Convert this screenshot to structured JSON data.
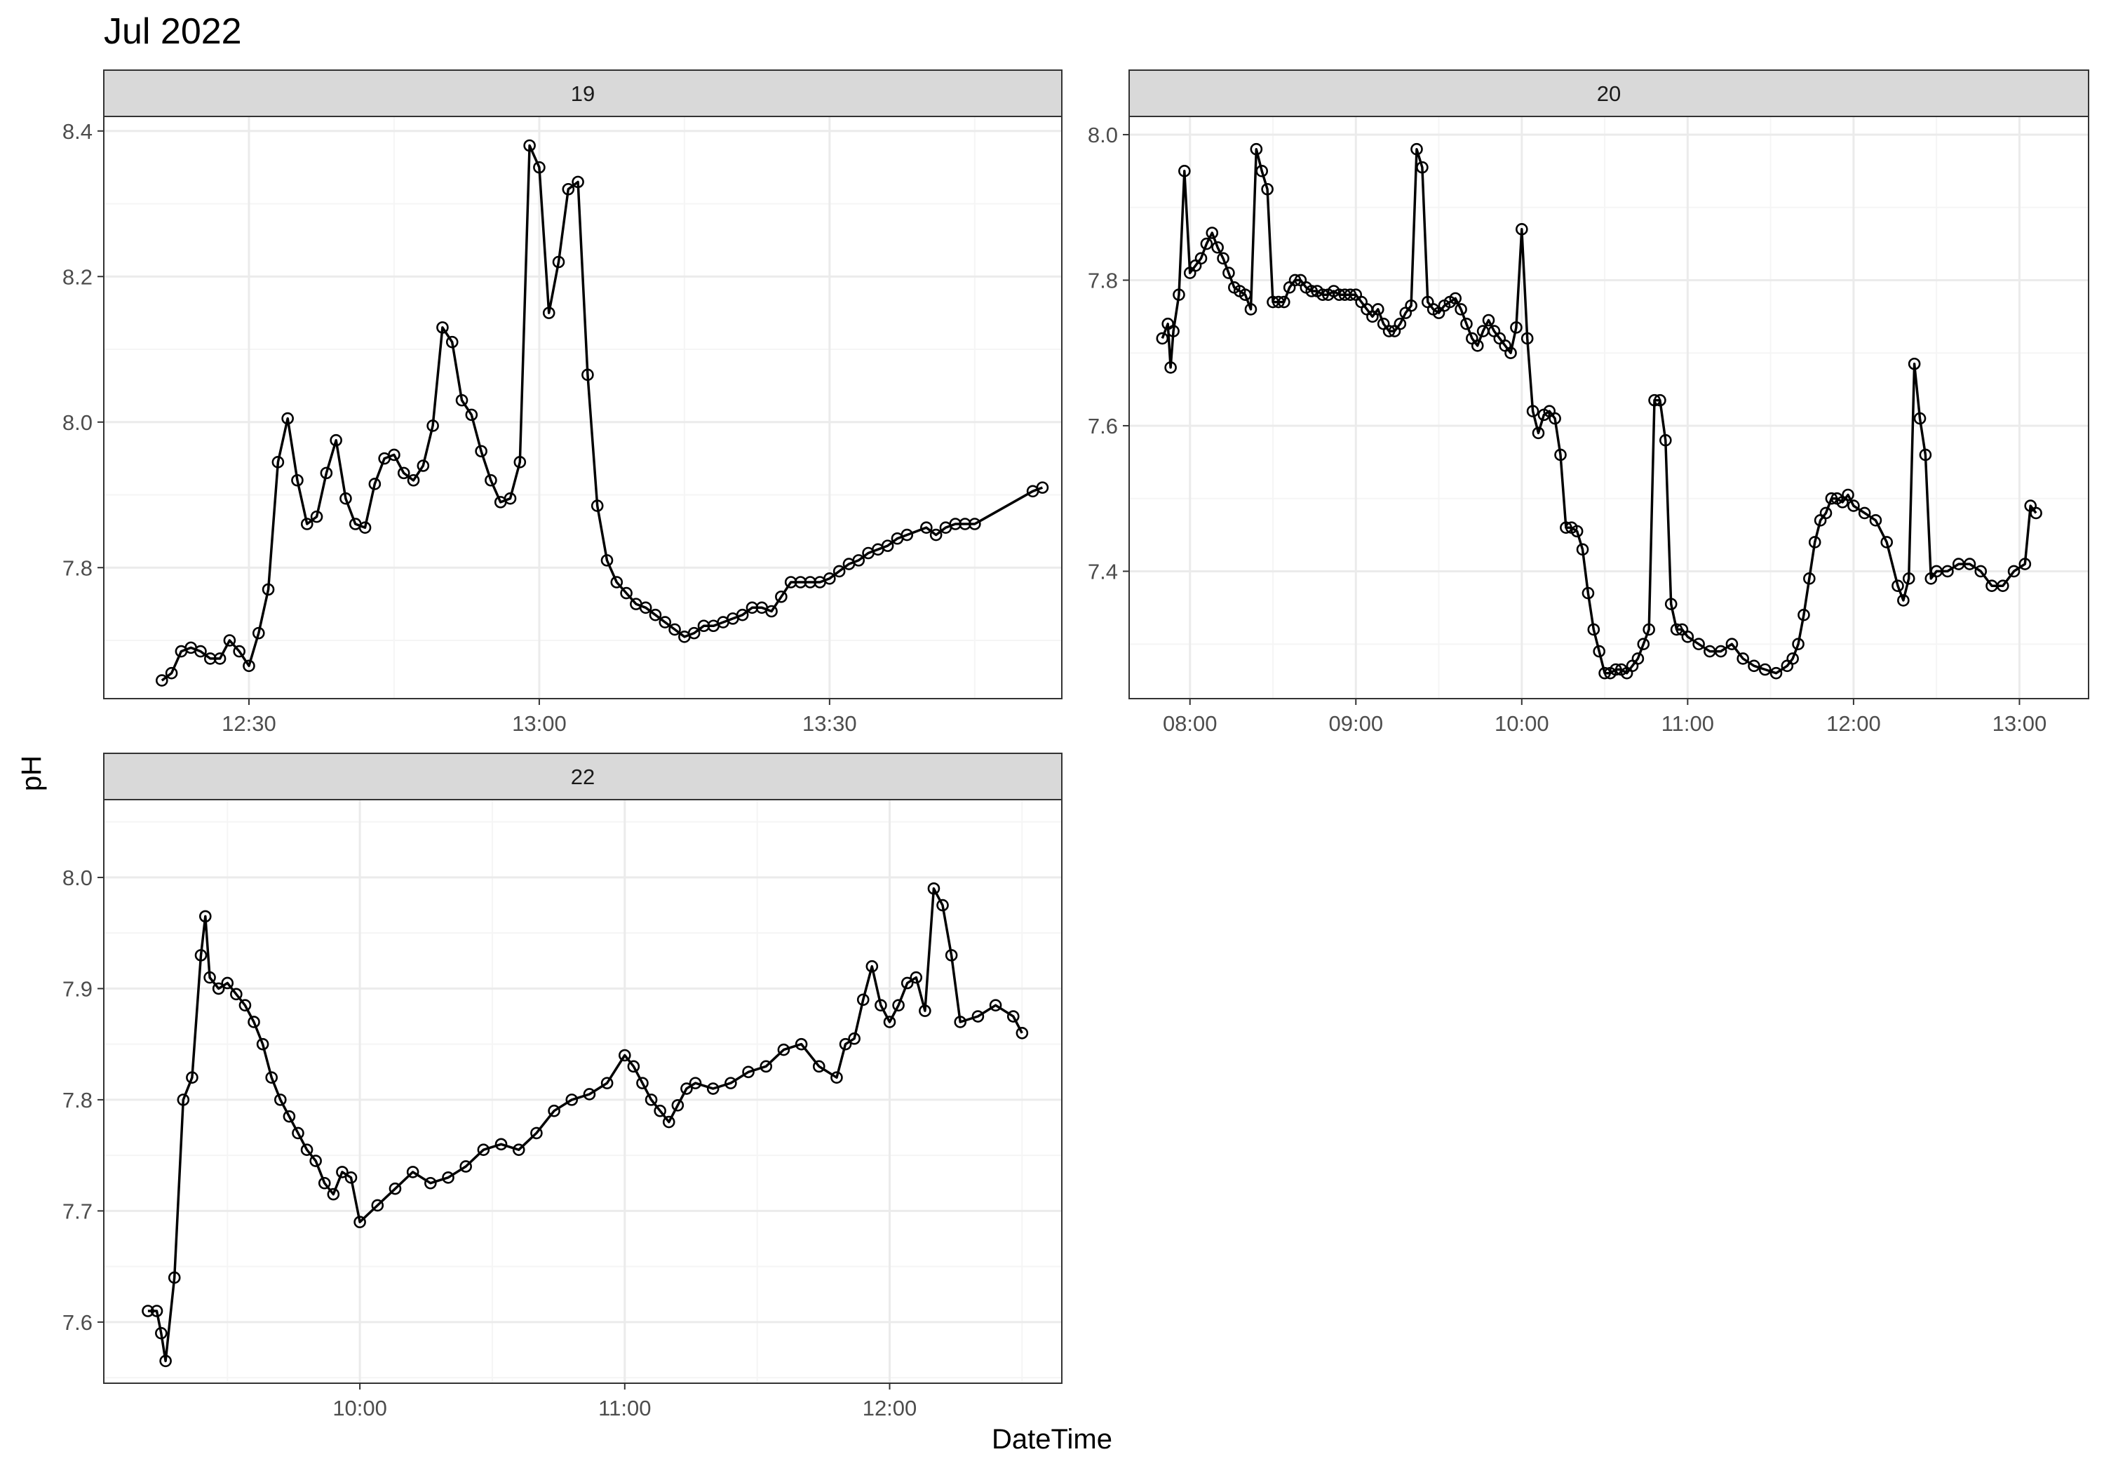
{
  "figure": {
    "title": "Jul 2022",
    "xlabel": "DateTime",
    "ylabel": "pH"
  },
  "colors": {
    "strip_fill": "#d9d9d9",
    "strip_border": "#333333",
    "panel_border": "#333333",
    "grid_major": "#ebebeb",
    "grid_minor": "#f5f5f5",
    "series": "#000000",
    "tick_label": "#4d4d4d"
  },
  "chart_data": [
    {
      "type": "line",
      "panel": "19",
      "xlim": [
        "12:15",
        "13:54"
      ],
      "ylim": [
        7.62,
        8.42
      ],
      "x_ticks": [
        "12:30",
        "13:00",
        "13:30"
      ],
      "y_ticks": [
        7.8,
        8.0,
        8.2,
        8.4
      ],
      "markers": "open-circle",
      "x": [
        "12:21",
        "12:22",
        "12:23",
        "12:24",
        "12:25",
        "12:26",
        "12:27",
        "12:28",
        "12:29",
        "12:30",
        "12:31",
        "12:32",
        "12:33",
        "12:34",
        "12:35",
        "12:36",
        "12:37",
        "12:38",
        "12:39",
        "12:40",
        "12:41",
        "12:42",
        "12:43",
        "12:44",
        "12:45",
        "12:46",
        "12:47",
        "12:48",
        "12:49",
        "12:50",
        "12:51",
        "12:52",
        "12:53",
        "12:54",
        "12:55",
        "12:56",
        "12:57",
        "12:58",
        "12:59",
        "13:00",
        "13:01",
        "13:02",
        "13:03",
        "13:04",
        "13:05",
        "13:06",
        "13:07",
        "13:08",
        "13:09",
        "13:10",
        "13:11",
        "13:12",
        "13:13",
        "13:14",
        "13:15",
        "13:16",
        "13:17",
        "13:18",
        "13:19",
        "13:20",
        "13:21",
        "13:22",
        "13:23",
        "13:24",
        "13:25",
        "13:26",
        "13:27",
        "13:28",
        "13:29",
        "13:30",
        "13:31",
        "13:32",
        "13:33",
        "13:34",
        "13:35",
        "13:36",
        "13:37",
        "13:38",
        "13:40",
        "13:41",
        "13:42",
        "13:43",
        "13:44",
        "13:45",
        "13:51",
        "13:52"
      ],
      "y": [
        7.645,
        7.655,
        7.685,
        7.69,
        7.685,
        7.675,
        7.675,
        7.7,
        7.685,
        7.665,
        7.71,
        7.77,
        7.945,
        8.005,
        7.92,
        7.86,
        7.87,
        7.93,
        7.975,
        7.895,
        7.86,
        7.855,
        7.915,
        7.95,
        7.955,
        7.93,
        7.92,
        7.94,
        7.995,
        8.13,
        8.11,
        8.03,
        8.01,
        7.96,
        7.92,
        7.89,
        7.895,
        7.945,
        8.38,
        8.35,
        8.15,
        8.22,
        8.32,
        8.33,
        8.065,
        7.885,
        7.81,
        7.78,
        7.765,
        7.75,
        7.745,
        7.735,
        7.725,
        7.715,
        7.705,
        7.71,
        7.72,
        7.72,
        7.725,
        7.73,
        7.735,
        7.745,
        7.745,
        7.74,
        7.76,
        7.78,
        7.78,
        7.78,
        7.78,
        7.785,
        7.795,
        7.805,
        7.81,
        7.82,
        7.825,
        7.83,
        7.84,
        7.845,
        7.855,
        7.845,
        7.855,
        7.86,
        7.86,
        7.86,
        7.905,
        7.91
      ]
    },
    {
      "type": "line",
      "panel": "20",
      "xlim": [
        "07:38",
        "13:25"
      ],
      "ylim": [
        7.225,
        8.025
      ],
      "x_ticks": [
        "08:00",
        "09:00",
        "10:00",
        "11:00",
        "12:00",
        "13:00"
      ],
      "y_ticks": [
        7.4,
        7.6,
        7.8,
        8.0
      ],
      "markers": "open-circle",
      "x": [
        "07:50",
        "07:52",
        "07:53",
        "07:54",
        "07:56",
        "07:58",
        "08:00",
        "08:02",
        "08:04",
        "08:06",
        "08:08",
        "08:10",
        "08:12",
        "08:14",
        "08:16",
        "08:18",
        "08:20",
        "08:22",
        "08:24",
        "08:26",
        "08:28",
        "08:30",
        "08:32",
        "08:34",
        "08:36",
        "08:38",
        "08:40",
        "08:42",
        "08:44",
        "08:46",
        "08:48",
        "08:50",
        "08:52",
        "08:54",
        "08:56",
        "08:58",
        "09:00",
        "09:02",
        "09:04",
        "09:06",
        "09:08",
        "09:10",
        "09:12",
        "09:14",
        "09:16",
        "09:18",
        "09:20",
        "09:22",
        "09:24",
        "09:26",
        "09:28",
        "09:30",
        "09:32",
        "09:34",
        "09:36",
        "09:38",
        "09:40",
        "09:42",
        "09:44",
        "09:46",
        "09:48",
        "09:50",
        "09:52",
        "09:54",
        "09:56",
        "09:58",
        "10:00",
        "10:02",
        "10:04",
        "10:06",
        "10:08",
        "10:10",
        "10:12",
        "10:14",
        "10:16",
        "10:18",
        "10:20",
        "10:22",
        "10:24",
        "10:26",
        "10:28",
        "10:30",
        "10:32",
        "10:34",
        "10:36",
        "10:38",
        "10:40",
        "10:42",
        "10:44",
        "10:46",
        "10:48",
        "10:50",
        "10:52",
        "10:54",
        "10:56",
        "10:58",
        "11:00",
        "11:04",
        "11:08",
        "11:12",
        "11:16",
        "11:20",
        "11:24",
        "11:28",
        "11:32",
        "11:36",
        "11:38",
        "11:40",
        "11:42",
        "11:44",
        "11:46",
        "11:48",
        "11:50",
        "11:52",
        "11:54",
        "11:56",
        "11:58",
        "12:00",
        "12:04",
        "12:08",
        "12:12",
        "12:16",
        "12:18",
        "12:20",
        "12:22",
        "12:24",
        "12:26",
        "12:28",
        "12:30",
        "12:34",
        "12:38",
        "12:42",
        "12:46",
        "12:50",
        "12:54",
        "12:58",
        "13:02",
        "13:04",
        "13:06"
      ],
      "y": [
        7.72,
        7.74,
        7.68,
        7.73,
        7.78,
        7.95,
        7.81,
        7.82,
        7.83,
        7.85,
        7.865,
        7.845,
        7.83,
        7.81,
        7.79,
        7.785,
        7.78,
        7.76,
        7.98,
        7.95,
        7.925,
        7.77,
        7.77,
        7.77,
        7.79,
        7.8,
        7.8,
        7.79,
        7.785,
        7.785,
        7.78,
        7.78,
        7.785,
        7.78,
        7.78,
        7.78,
        7.78,
        7.77,
        7.76,
        7.75,
        7.76,
        7.74,
        7.73,
        7.73,
        7.74,
        7.755,
        7.765,
        7.98,
        7.955,
        7.77,
        7.76,
        7.755,
        7.765,
        7.77,
        7.775,
        7.76,
        7.74,
        7.72,
        7.71,
        7.73,
        7.745,
        7.73,
        7.72,
        7.71,
        7.7,
        7.735,
        7.87,
        7.72,
        7.62,
        7.59,
        7.615,
        7.62,
        7.61,
        7.56,
        7.46,
        7.46,
        7.455,
        7.43,
        7.37,
        7.32,
        7.29,
        7.26,
        7.26,
        7.265,
        7.265,
        7.26,
        7.27,
        7.28,
        7.3,
        7.32,
        7.635,
        7.635,
        7.58,
        7.355,
        7.32,
        7.32,
        7.31,
        7.3,
        7.29,
        7.29,
        7.3,
        7.28,
        7.27,
        7.265,
        7.26,
        7.27,
        7.28,
        7.3,
        7.34,
        7.39,
        7.44,
        7.47,
        7.48,
        7.5,
        7.5,
        7.495,
        7.505,
        7.49,
        7.48,
        7.47,
        7.44,
        7.38,
        7.36,
        7.39,
        7.685,
        7.61,
        7.56,
        7.39,
        7.4,
        7.4,
        7.41,
        7.41,
        7.4,
        7.38,
        7.38,
        7.4,
        7.41,
        7.49,
        7.48
      ]
    },
    {
      "type": "line",
      "panel": "22",
      "xlim": [
        "09:02",
        "12:39"
      ],
      "ylim": [
        7.545,
        8.07
      ],
      "x_ticks": [
        "10:00",
        "11:00",
        "12:00"
      ],
      "y_ticks": [
        7.6,
        7.7,
        7.8,
        7.9,
        8.0
      ],
      "markers": "open-circle",
      "x": [
        "09:12",
        "09:14",
        "09:15",
        "09:16",
        "09:18",
        "09:20",
        "09:22",
        "09:24",
        "09:25",
        "09:26",
        "09:28",
        "09:30",
        "09:32",
        "09:34",
        "09:36",
        "09:38",
        "09:40",
        "09:42",
        "09:44",
        "09:46",
        "09:48",
        "09:50",
        "09:52",
        "09:54",
        "09:56",
        "09:58",
        "10:00",
        "10:04",
        "10:08",
        "10:12",
        "10:16",
        "10:20",
        "10:24",
        "10:28",
        "10:32",
        "10:36",
        "10:40",
        "10:44",
        "10:48",
        "10:52",
        "10:56",
        "11:00",
        "11:02",
        "11:04",
        "11:06",
        "11:08",
        "11:10",
        "11:12",
        "11:14",
        "11:16",
        "11:20",
        "11:24",
        "11:28",
        "11:32",
        "11:36",
        "11:40",
        "11:44",
        "11:48",
        "11:50",
        "11:52",
        "11:54",
        "11:56",
        "11:58",
        "12:00",
        "12:02",
        "12:04",
        "12:06",
        "12:08",
        "12:10",
        "12:12",
        "12:14",
        "12:16",
        "12:20",
        "12:24",
        "12:28",
        "12:30"
      ],
      "y": [
        7.61,
        7.61,
        7.59,
        7.565,
        7.64,
        7.8,
        7.82,
        7.93,
        7.965,
        7.91,
        7.9,
        7.905,
        7.895,
        7.885,
        7.87,
        7.85,
        7.82,
        7.8,
        7.785,
        7.77,
        7.755,
        7.745,
        7.725,
        7.715,
        7.735,
        7.73,
        7.69,
        7.705,
        7.72,
        7.735,
        7.725,
        7.73,
        7.74,
        7.755,
        7.76,
        7.755,
        7.77,
        7.79,
        7.8,
        7.805,
        7.815,
        7.84,
        7.83,
        7.815,
        7.8,
        7.79,
        7.78,
        7.795,
        7.81,
        7.815,
        7.81,
        7.815,
        7.825,
        7.83,
        7.845,
        7.85,
        7.83,
        7.82,
        7.85,
        7.855,
        7.89,
        7.92,
        7.885,
        7.87,
        7.885,
        7.905,
        7.91,
        7.88,
        7.99,
        7.975,
        7.93,
        7.87,
        7.875,
        7.885,
        7.875,
        7.86
      ]
    }
  ]
}
